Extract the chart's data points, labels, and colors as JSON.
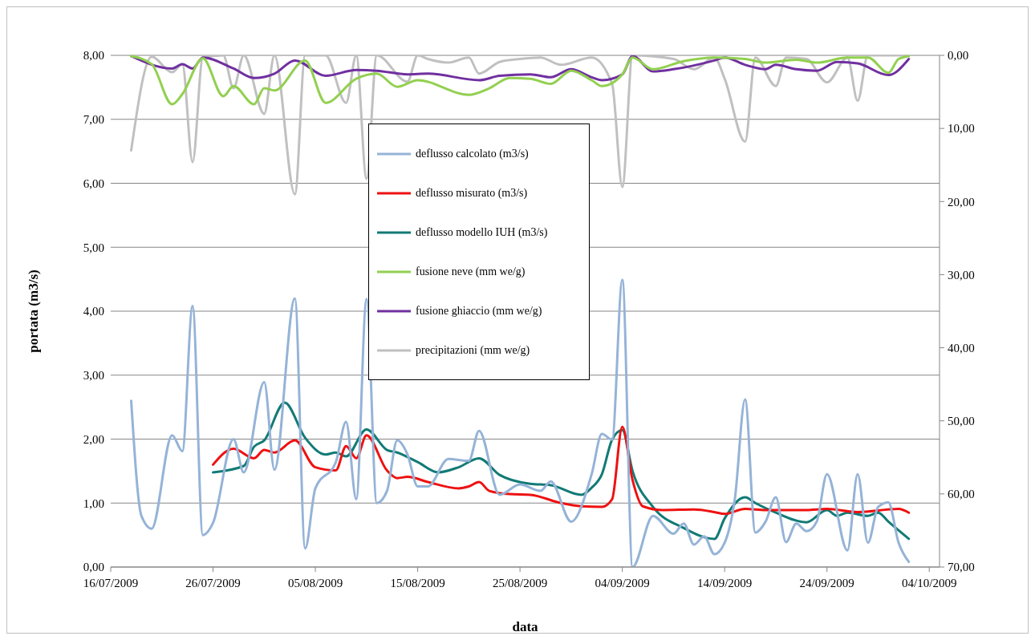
{
  "chart_data": {
    "type": "line",
    "xlabel": "data",
    "ylabel": "portata (m3/s)",
    "xlim": [
      "2009-07-16",
      "2009-10-05"
    ],
    "xticks": [
      {
        "value": "2009-07-16",
        "label": "16/07/2009"
      },
      {
        "value": "2009-07-26",
        "label": "26/07/2009"
      },
      {
        "value": "2009-08-05",
        "label": "05/08/2009"
      },
      {
        "value": "2009-08-15",
        "label": "15/08/2009"
      },
      {
        "value": "2009-08-25",
        "label": "25/08/2009"
      },
      {
        "value": "2009-09-04",
        "label": "04/09/2009"
      },
      {
        "value": "2009-09-14",
        "label": "14/09/2009"
      },
      {
        "value": "2009-09-24",
        "label": "24/09/2009"
      },
      {
        "value": "2009-10-04",
        "label": "04/10/2009"
      }
    ],
    "ylim": [
      0,
      8
    ],
    "yticks": [
      {
        "value": 0,
        "label": "0,00"
      },
      {
        "value": 1,
        "label": "1,00"
      },
      {
        "value": 2,
        "label": "2,00"
      },
      {
        "value": 3,
        "label": "3,00"
      },
      {
        "value": 4,
        "label": "4,00"
      },
      {
        "value": 5,
        "label": "5,00"
      },
      {
        "value": 6,
        "label": "6,00"
      },
      {
        "value": 7,
        "label": "7,00"
      },
      {
        "value": 8,
        "label": "8,00"
      }
    ],
    "y2lim": [
      70,
      0
    ],
    "y2ticks": [
      {
        "value": 0,
        "label": "0,00"
      },
      {
        "value": 10,
        "label": "10,00"
      },
      {
        "value": 20,
        "label": "20,00"
      },
      {
        "value": 30,
        "label": "30,00"
      },
      {
        "value": 40,
        "label": "40,00"
      },
      {
        "value": 50,
        "label": "50,00"
      },
      {
        "value": 60,
        "label": "60,00"
      },
      {
        "value": 70,
        "label": "70,00"
      }
    ],
    "grid": "y",
    "legend": "top left",
    "marker": "none",
    "series": [
      {
        "name": "deflusso calcolato (m3/s)",
        "color": "#95b3d7",
        "x": [
          "2009-07-18",
          "2009-07-19",
          "2009-07-20",
          "2009-07-22",
          "2009-07-23",
          "2009-07-24",
          "2009-07-25",
          "2009-07-26",
          "2009-07-28",
          "2009-07-29",
          "2009-07-31",
          "2009-08-01",
          "2009-08-03",
          "2009-08-04",
          "2009-08-05",
          "2009-08-07",
          "2009-08-08",
          "2009-08-09",
          "2009-08-10",
          "2009-08-11",
          "2009-08-12",
          "2009-08-13",
          "2009-08-14",
          "2009-08-15",
          "2009-08-16",
          "2009-08-18",
          "2009-08-20",
          "2009-08-21",
          "2009-08-23",
          "2009-08-25",
          "2009-08-27",
          "2009-08-28",
          "2009-08-30",
          "2009-09-01",
          "2009-09-02",
          "2009-09-03",
          "2009-09-04",
          "2009-09-05",
          "2009-09-07",
          "2009-09-09",
          "2009-09-10",
          "2009-09-11",
          "2009-09-12",
          "2009-09-13",
          "2009-09-14",
          "2009-09-15",
          "2009-09-16",
          "2009-09-17",
          "2009-09-18",
          "2009-09-19",
          "2009-09-20",
          "2009-09-21",
          "2009-09-22",
          "2009-09-23",
          "2009-09-24",
          "2009-09-26",
          "2009-09-27",
          "2009-09-28",
          "2009-09-29",
          "2009-09-30",
          "2009-10-01",
          "2009-10-02"
        ],
        "values": [
          2.6,
          0.8,
          0.6,
          2.06,
          1.81,
          4.08,
          0.5,
          0.69,
          2.0,
          1.48,
          2.89,
          1.52,
          4.2,
          0.29,
          1.23,
          1.64,
          2.27,
          1.06,
          4.19,
          1.0,
          1.19,
          1.98,
          1.76,
          1.26,
          1.26,
          1.69,
          1.66,
          2.13,
          1.13,
          1.29,
          1.19,
          1.34,
          0.71,
          1.45,
          2.08,
          1.99,
          4.49,
          0,
          0.8,
          0.52,
          0.68,
          0.35,
          0.48,
          0.2,
          0.38,
          1.07,
          2.62,
          0.54,
          0.71,
          1.09,
          0.39,
          0.68,
          0.56,
          0.71,
          1.45,
          0.26,
          1.45,
          0.38,
          0.94,
          1.01,
          0.38,
          0.08
        ]
      },
      {
        "name": "deflusso misurato (m3/s)",
        "color": "#ee1111",
        "x": [
          "2009-07-26",
          "2009-07-28",
          "2009-07-30",
          "2009-07-31",
          "2009-08-01",
          "2009-08-03",
          "2009-08-05",
          "2009-08-07",
          "2009-08-08",
          "2009-08-09",
          "2009-08-10",
          "2009-08-12",
          "2009-08-13",
          "2009-08-14",
          "2009-08-16",
          "2009-08-19",
          "2009-08-20",
          "2009-08-21",
          "2009-08-22",
          "2009-08-24",
          "2009-08-26",
          "2009-08-29",
          "2009-08-31",
          "2009-09-02",
          "2009-09-03",
          "2009-09-04",
          "2009-09-05",
          "2009-09-06",
          "2009-09-08",
          "2009-09-11",
          "2009-09-13",
          "2009-09-14",
          "2009-09-16",
          "2009-09-18",
          "2009-09-22",
          "2009-09-24",
          "2009-09-27",
          "2009-10-01",
          "2009-10-02"
        ],
        "values": [
          1.6,
          1.85,
          1.7,
          1.83,
          1.79,
          1.98,
          1.56,
          1.51,
          1.89,
          1.7,
          2.06,
          1.51,
          1.39,
          1.41,
          1.33,
          1.23,
          1.26,
          1.33,
          1.19,
          1.14,
          1.13,
          1.0,
          0.95,
          0.94,
          1.06,
          2.19,
          1.36,
          0.95,
          0.89,
          0.9,
          0.86,
          0.83,
          0.91,
          0.89,
          0.89,
          0.91,
          0.86,
          0.91,
          0.85
        ]
      },
      {
        "name": "deflusso modello IUH (m3/s)",
        "color": "#127a76",
        "x": [
          "2009-07-26",
          "2009-07-29",
          "2009-07-30",
          "2009-07-31",
          "2009-08-02",
          "2009-08-04",
          "2009-08-06",
          "2009-08-07",
          "2009-08-08",
          "2009-08-10",
          "2009-08-12",
          "2009-08-13",
          "2009-08-15",
          "2009-08-17",
          "2009-08-19",
          "2009-08-21",
          "2009-08-23",
          "2009-08-26",
          "2009-08-28",
          "2009-08-31",
          "2009-09-01",
          "2009-09-02",
          "2009-09-03",
          "2009-09-04",
          "2009-09-05",
          "2009-09-07",
          "2009-09-10",
          "2009-09-13",
          "2009-09-14",
          "2009-09-16",
          "2009-09-17",
          "2009-09-19",
          "2009-09-22",
          "2009-09-24",
          "2009-09-25",
          "2009-09-26",
          "2009-09-28",
          "2009-09-29",
          "2009-09-30",
          "2009-10-02"
        ],
        "values": [
          1.48,
          1.58,
          1.88,
          1.98,
          2.57,
          2.02,
          1.76,
          1.79,
          1.73,
          2.15,
          1.83,
          1.79,
          1.64,
          1.48,
          1.56,
          1.7,
          1.44,
          1.3,
          1.28,
          1.13,
          1.24,
          1.45,
          1.99,
          2.14,
          1.5,
          0.94,
          0.61,
          0.44,
          0.76,
          1.09,
          1.0,
          0.85,
          0.7,
          0.89,
          0.8,
          0.85,
          0.8,
          0.85,
          0.71,
          0.44
        ]
      },
      {
        "name": "fusione neve (mm we/g)",
        "color": "#92d050",
        "axis": "y2",
        "x": [
          "2009-07-18",
          "2009-07-20",
          "2009-07-22",
          "2009-07-23",
          "2009-07-25",
          "2009-07-27",
          "2009-07-28",
          "2009-07-30",
          "2009-07-31",
          "2009-08-01",
          "2009-08-04",
          "2009-08-06",
          "2009-08-09",
          "2009-08-11",
          "2009-08-13",
          "2009-08-15",
          "2009-08-20",
          "2009-08-22",
          "2009-08-24",
          "2009-08-26",
          "2009-08-28",
          "2009-08-30",
          "2009-09-01",
          "2009-09-02",
          "2009-09-04",
          "2009-09-05",
          "2009-09-07",
          "2009-09-10",
          "2009-09-13",
          "2009-09-16",
          "2009-09-18",
          "2009-09-21",
          "2009-09-23",
          "2009-09-26",
          "2009-09-28",
          "2009-09-30",
          "2009-10-01",
          "2009-10-02"
        ],
        "values": [
          0.1,
          1.2,
          6.7,
          5.3,
          0.4,
          5.6,
          4.2,
          6.7,
          4.5,
          4.8,
          0.7,
          6.5,
          3.2,
          2.5,
          4.3,
          3.4,
          5.4,
          4.5,
          3.1,
          3.2,
          3.9,
          2.1,
          3.4,
          4.2,
          2.6,
          0.3,
          1.9,
          0.8,
          0.3,
          0.5,
          1.0,
          0.6,
          1.0,
          0.3,
          0.3,
          2.4,
          0.5,
          0.1
        ]
      },
      {
        "name": "fusione ghiaccio (mm we/g)",
        "color": "#7030a0",
        "axis": "y2",
        "x": [
          "2009-07-18",
          "2009-07-22",
          "2009-07-23",
          "2009-07-24",
          "2009-07-25",
          "2009-07-28",
          "2009-07-30",
          "2009-08-01",
          "2009-08-03",
          "2009-08-06",
          "2009-08-09",
          "2009-08-11",
          "2009-08-14",
          "2009-08-16",
          "2009-08-21",
          "2009-08-23",
          "2009-08-26",
          "2009-08-28",
          "2009-08-30",
          "2009-09-01",
          "2009-09-02",
          "2009-09-04",
          "2009-09-05",
          "2009-09-07",
          "2009-09-09",
          "2009-09-13",
          "2009-09-14",
          "2009-09-16",
          "2009-09-18",
          "2009-09-19",
          "2009-09-21",
          "2009-09-23",
          "2009-09-25",
          "2009-09-27",
          "2009-09-30",
          "2009-10-02"
        ],
        "values": [
          0.1,
          1.8,
          1.2,
          1.8,
          0.3,
          1.8,
          3.1,
          2.5,
          0.7,
          2.8,
          2.0,
          2.1,
          2.6,
          2.5,
          3.4,
          2.8,
          2.6,
          3.0,
          1.9,
          3.0,
          3.4,
          2.6,
          0.1,
          2.2,
          1.9,
          0.7,
          0.3,
          1.3,
          1.9,
          1.3,
          1.9,
          2.1,
          0.9,
          1.1,
          2.7,
          0.5
        ]
      },
      {
        "name": "precipitazioni (mm we/g)",
        "color": "#c0c0c0",
        "axis": "y2",
        "x": [
          "2009-07-18",
          "2009-07-20",
          "2009-07-22",
          "2009-07-23",
          "2009-07-24",
          "2009-07-25",
          "2009-07-27",
          "2009-07-28",
          "2009-07-29",
          "2009-07-31",
          "2009-08-01",
          "2009-08-03",
          "2009-08-04",
          "2009-08-06",
          "2009-08-08",
          "2009-08-09",
          "2009-08-10",
          "2009-08-11",
          "2009-08-14",
          "2009-08-15",
          "2009-08-16",
          "2009-08-18",
          "2009-08-20",
          "2009-08-21",
          "2009-08-23",
          "2009-08-25",
          "2009-08-27",
          "2009-08-29",
          "2009-09-01",
          "2009-09-03",
          "2009-09-04",
          "2009-09-05",
          "2009-09-09",
          "2009-09-11",
          "2009-09-13",
          "2009-09-14",
          "2009-09-16",
          "2009-09-17",
          "2009-09-19",
          "2009-09-20",
          "2009-09-22",
          "2009-09-24",
          "2009-09-26",
          "2009-09-27",
          "2009-09-28",
          "2009-10-02"
        ],
        "values": [
          13.0,
          0.2,
          2.3,
          1.2,
          14.6,
          0.3,
          0,
          4.5,
          0,
          8.0,
          0,
          19.0,
          0,
          0,
          6.5,
          0,
          16.9,
          0,
          3.6,
          0,
          0.5,
          1.0,
          0.3,
          2.5,
          0.9,
          0.5,
          0.3,
          1.3,
          0.3,
          3.9,
          18.0,
          0,
          0.5,
          1.9,
          0.3,
          3.2,
          11.8,
          0.3,
          4.2,
          0.3,
          0.5,
          3.7,
          0.3,
          6.2,
          0,
          0
        ]
      }
    ]
  }
}
